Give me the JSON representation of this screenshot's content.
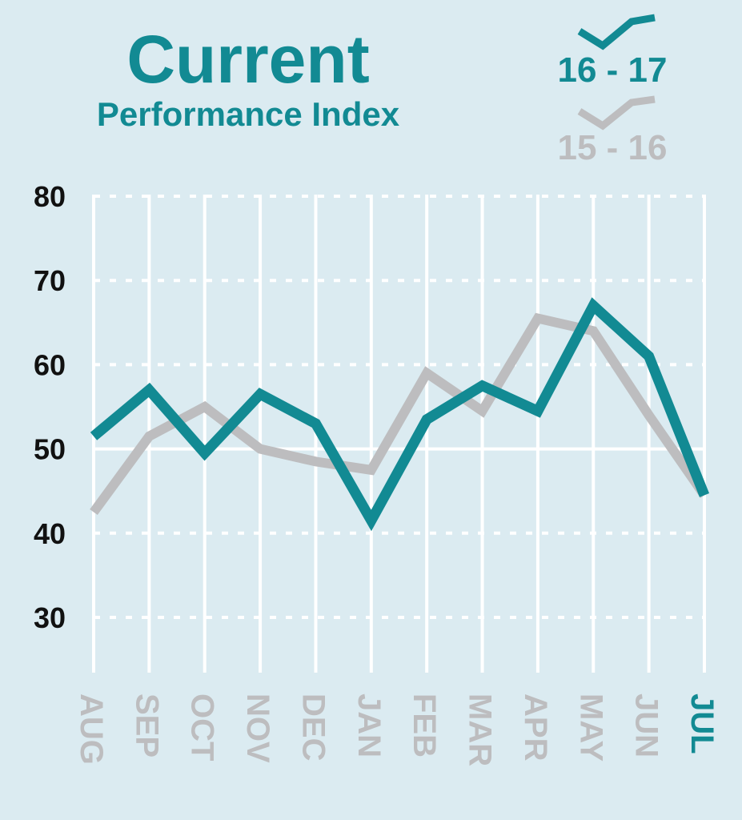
{
  "title": "Current",
  "subtitle": "Performance Index",
  "colors": {
    "background": "#dbebf1",
    "current": "#128a93",
    "previous": "#bdbdbf",
    "grid": "#ffffff",
    "tick": "#111111"
  },
  "legend": {
    "current_label": "16 - 17",
    "previous_label": "15 - 16"
  },
  "chart_data": {
    "type": "line",
    "title": "Current",
    "subtitle": "Performance Index",
    "categories": [
      "AUG",
      "SEP",
      "OCT",
      "NOV",
      "DEC",
      "JAN",
      "FEB",
      "MAR",
      "APR",
      "MAY",
      "JUN",
      "JUL"
    ],
    "series": [
      {
        "name": "16 - 17",
        "values": [
          51.5,
          57,
          49.5,
          56.5,
          53,
          41.5,
          53.5,
          57.5,
          54.5,
          67,
          61,
          44.5
        ]
      },
      {
        "name": "15 - 16",
        "values": [
          42.5,
          51.5,
          55,
          50,
          48.5,
          47.5,
          59,
          54.5,
          65.5,
          64,
          54,
          44.5
        ]
      }
    ],
    "yticks": [
      30,
      40,
      50,
      60,
      70,
      80
    ],
    "ylim": [
      23,
      80
    ],
    "grid": true,
    "legend_position": "top-right",
    "highlight_category": "JUL"
  }
}
